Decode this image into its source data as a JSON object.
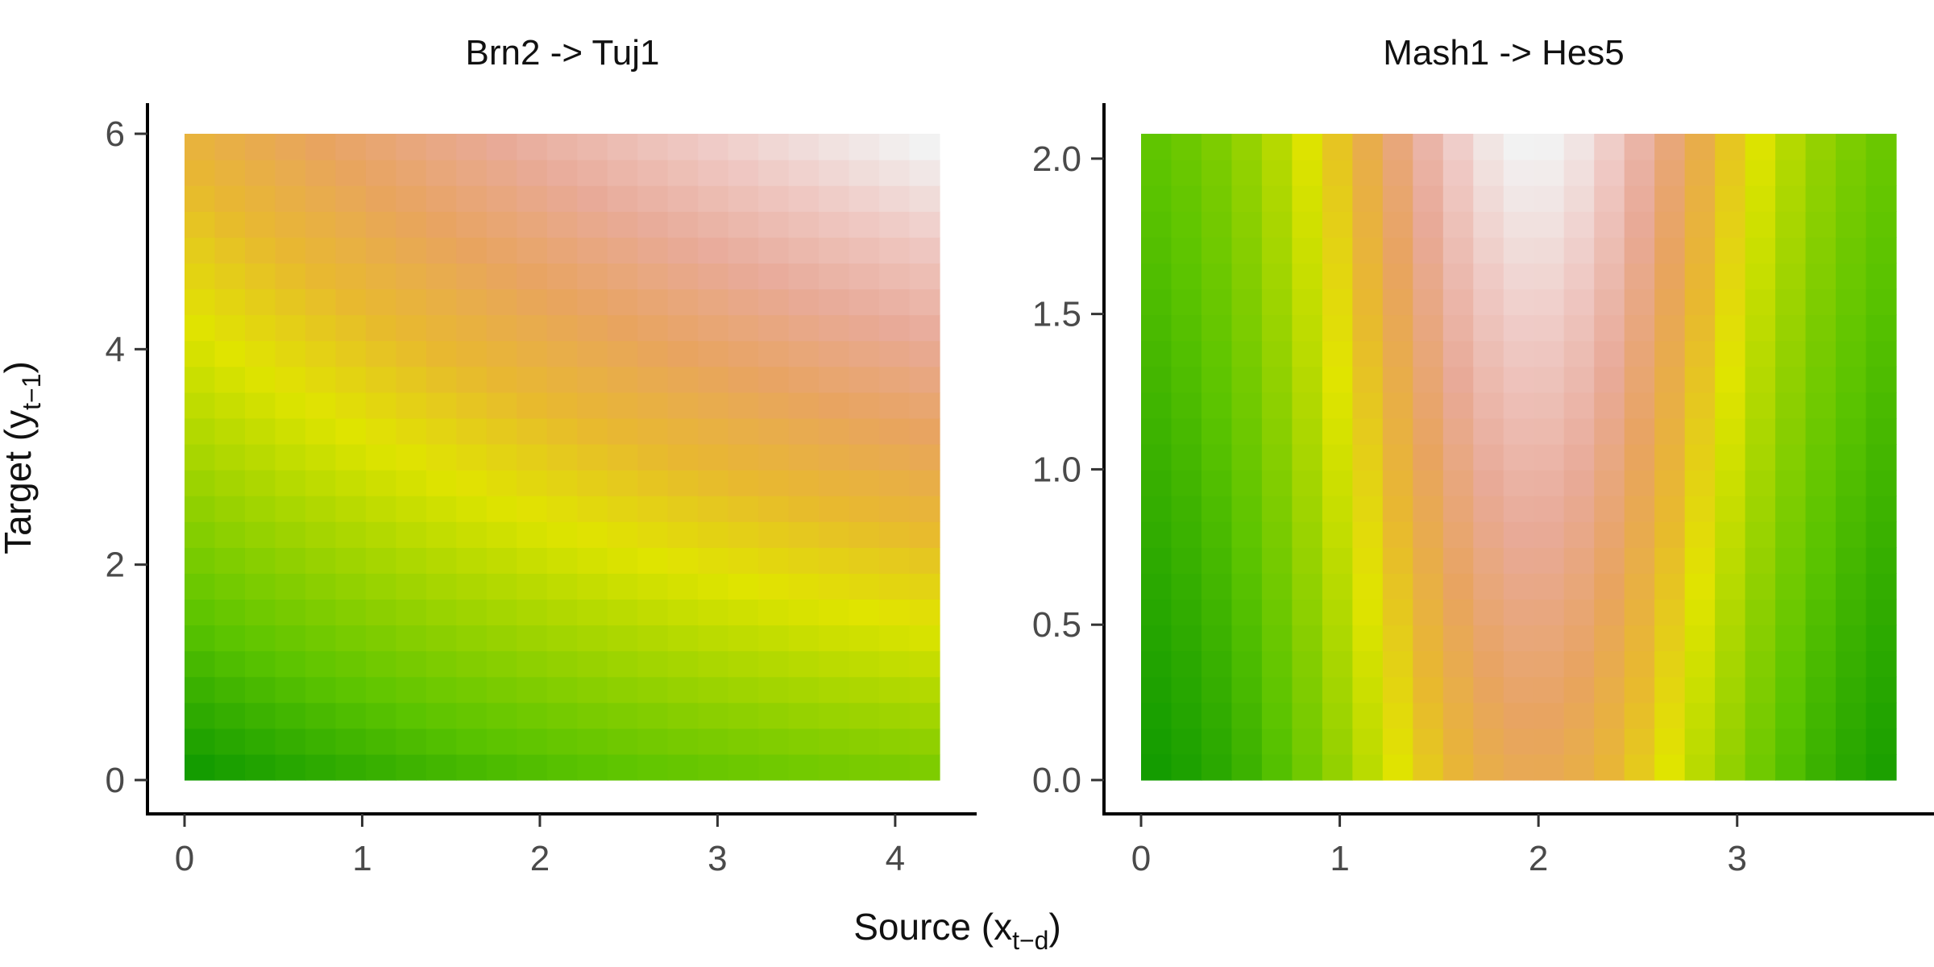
{
  "figure": {
    "shared_xlabel_base": "Source (x",
    "shared_xlabel_sub": "t−d",
    "shared_xlabel_close": ")",
    "shared_ylabel_base": "Target (y",
    "shared_ylabel_sub": "t−1",
    "shared_ylabel_close": ")"
  },
  "chart_data": [
    {
      "type": "heatmap",
      "title": "Brn2 -> Tuj1",
      "xlim": [
        0,
        4.25
      ],
      "ylim": [
        0,
        6
      ],
      "x_ticks": [
        0,
        1,
        2,
        3,
        4
      ],
      "x_tick_labels": [
        "0",
        "1",
        "2",
        "3",
        "4"
      ],
      "y_ticks": [
        0,
        2,
        4,
        6
      ],
      "y_tick_labels": [
        "0",
        "2",
        "4",
        "6"
      ],
      "grid": false,
      "legend": "none",
      "grid_cols": 25,
      "grid_rows": 25,
      "surface": "brn2",
      "colormap": [
        "#149c00",
        "#5cc400",
        "#9fd400",
        "#e0e400",
        "#e8b830",
        "#e8a460",
        "#e8aa98",
        "#efc9c4",
        "#f2f2f2"
      ]
    },
    {
      "type": "heatmap",
      "title": "Mash1 -> Hes5",
      "xlim": [
        0,
        3.8
      ],
      "ylim": [
        0,
        2.08
      ],
      "x_ticks": [
        0,
        1,
        2,
        3
      ],
      "x_tick_labels": [
        "0",
        "1",
        "2",
        "3"
      ],
      "y_ticks": [
        0,
        0.5,
        1.0,
        1.5,
        2.0
      ],
      "y_tick_labels": [
        "0.0",
        "0.5",
        "1.0",
        "1.5",
        "2.0"
      ],
      "grid": false,
      "legend": "none",
      "grid_cols": 25,
      "grid_rows": 25,
      "surface": "mash1",
      "colormap": [
        "#149c00",
        "#5cc400",
        "#9fd400",
        "#e0e400",
        "#e8b830",
        "#e8a460",
        "#e8aa98",
        "#efc9c4",
        "#f2f2f2"
      ]
    }
  ]
}
